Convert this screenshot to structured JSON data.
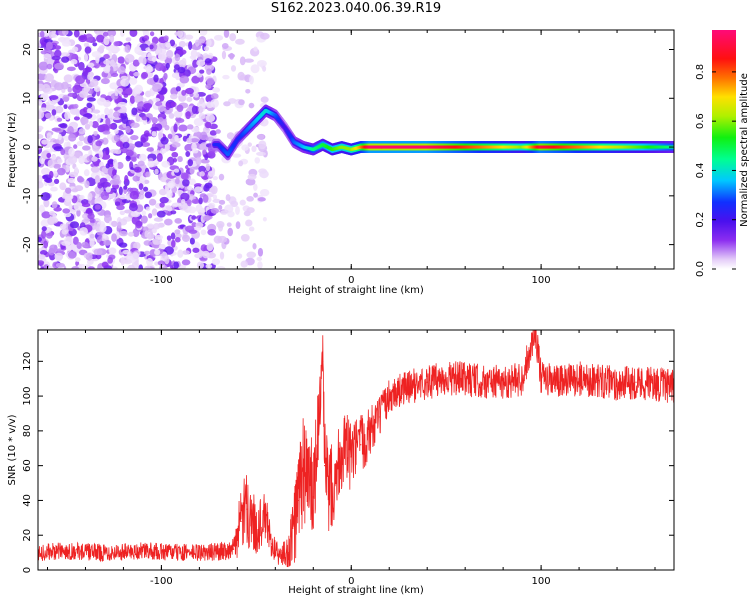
{
  "figure_title": "S162.2023.040.06.39.R19",
  "colors": {
    "snr_line": "#ee2222",
    "axes": "#000000",
    "spectrogram_background": "#ffffff"
  },
  "chart_data": [
    {
      "type": "heatmap",
      "title": "",
      "xlabel": "Height of straight line (km)",
      "ylabel": "Frequency (Hz)",
      "xlim": [
        -165,
        170
      ],
      "ylim": [
        -25,
        24
      ],
      "xticks": [
        -100,
        0,
        100
      ],
      "yticks": [
        -20,
        -10,
        0,
        10,
        20
      ],
      "grid": false,
      "colorbar": {
        "label": "Normalized spectral amplitude",
        "range": [
          0.0,
          0.97
        ],
        "ticks": [
          0.0,
          0.2,
          0.4,
          0.6,
          0.8
        ],
        "colormap": "rainbow (white-violet-blue-cyan-green-yellow-orange-red-magenta)"
      },
      "regions": [
        {
          "name": "noise",
          "x_range": [
            -165,
            -72
          ],
          "freq_range": [
            -25,
            24
          ],
          "amplitude_range": [
            0.0,
            0.15
          ]
        },
        {
          "name": "sparse noise",
          "x_range": [
            -72,
            -45
          ],
          "freq_range": [
            -25,
            24
          ],
          "amplitude_range": [
            0.0,
            0.05
          ]
        },
        {
          "name": "ridge",
          "x_range": [
            -72,
            170
          ],
          "amplitude_range": [
            0.1,
            0.95
          ]
        }
      ],
      "ridge": {
        "x": [
          -70,
          -65,
          -60,
          -55,
          -50,
          -45,
          -40,
          -35,
          -30,
          -25,
          -20,
          -15,
          -10,
          -5,
          0,
          5,
          10,
          40,
          80,
          90,
          100,
          170
        ],
        "frequency": [
          0.5,
          -1.5,
          1.5,
          3.5,
          5.5,
          7.5,
          6.5,
          4.0,
          1.0,
          0.0,
          -0.5,
          0.5,
          -0.5,
          0.0,
          -0.5,
          0.0,
          0.0,
          0.0,
          0.0,
          0.0,
          0.0,
          0.0
        ],
        "amplitude": [
          0.25,
          0.3,
          0.25,
          0.3,
          0.35,
          0.4,
          0.3,
          0.2,
          0.3,
          0.35,
          0.45,
          0.5,
          0.55,
          0.6,
          0.6,
          0.75,
          0.95,
          0.95,
          0.7,
          0.6,
          0.9,
          0.45
        ]
      }
    },
    {
      "type": "line",
      "title": "",
      "xlabel": "Height of straight line (km)",
      "ylabel": "SNR (10 * v/v)",
      "xlim": [
        -165,
        170
      ],
      "ylim": [
        0,
        138
      ],
      "xticks": [
        -100,
        0,
        100
      ],
      "yticks": [
        0,
        20,
        40,
        60,
        80,
        100,
        120
      ],
      "grid": false,
      "series": [
        {
          "x": [
            -165,
            -150,
            -130,
            -110,
            -90,
            -75,
            -62,
            -58,
            -55,
            -50,
            -45,
            -42,
            -38,
            -33,
            -30,
            -28,
            -25,
            -20,
            -15,
            -14,
            -12,
            -8,
            -5,
            0,
            5,
            10,
            15,
            20,
            25,
            30,
            40,
            50,
            60,
            70,
            80,
            90,
            97,
            100,
            110,
            120,
            130,
            140,
            150,
            160,
            170
          ],
          "values": [
            10,
            11,
            10,
            11,
            10,
            10,
            12,
            28,
            35,
            24,
            30,
            15,
            8,
            10,
            25,
            40,
            60,
            42,
            120,
            60,
            45,
            55,
            70,
            65,
            72,
            80,
            88,
            100,
            103,
            105,
            108,
            110,
            110,
            108,
            108,
            110,
            138,
            110,
            108,
            110,
            109,
            107,
            108,
            107,
            105
          ],
          "noise_amplitude": [
            5,
            5,
            5,
            5,
            5,
            5,
            6,
            20,
            22,
            15,
            15,
            8,
            6,
            10,
            25,
            30,
            35,
            30,
            15,
            30,
            25,
            25,
            25,
            20,
            18,
            15,
            12,
            10,
            10,
            10,
            10,
            10,
            10,
            10,
            10,
            10,
            10,
            10,
            10,
            10,
            10,
            10,
            10,
            10,
            10
          ]
        }
      ]
    }
  ]
}
